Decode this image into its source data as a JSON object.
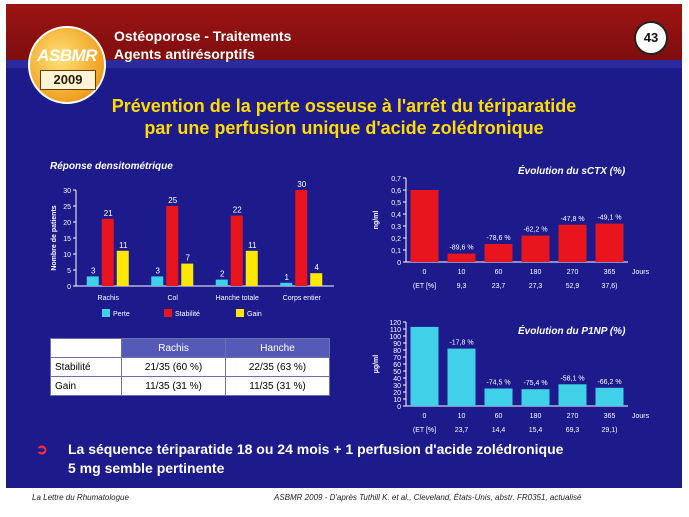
{
  "header": {
    "logo_text": "ASBMR",
    "logo_year": "2009",
    "title_line1": "Ostéoporose - Traitements",
    "title_line2": "Agents antirésorptifs",
    "page_number": "43"
  },
  "main_title": {
    "line1": "Prévention de la perte osseuse à l'arrêt du tériparatide",
    "line2": "par une perfusion unique d'acide zolédronique"
  },
  "colors": {
    "background": "#1d1a8c",
    "header": "#8a1010",
    "title": "#ffdc00",
    "perte": "#40d0e8",
    "stabilite": "#e8141e",
    "gain": "#ffe800"
  },
  "chart_data": [
    {
      "type": "bar",
      "title": "Réponse densitométrique",
      "ylabel": "Nombre de patients",
      "ylim": [
        0,
        30
      ],
      "yticks": [
        0,
        5,
        10,
        15,
        20,
        25,
        30
      ],
      "categories": [
        "Rachis",
        "Col",
        "Hanche totale",
        "Corps entier"
      ],
      "series": [
        {
          "name": "Perte",
          "values": [
            3,
            3,
            2,
            1
          ]
        },
        {
          "name": "Stabilité",
          "values": [
            21,
            25,
            22,
            30
          ]
        },
        {
          "name": "Gain",
          "values": [
            11,
            7,
            11,
            4
          ]
        }
      ],
      "legend": "bottom",
      "grid": false
    },
    {
      "type": "bar",
      "title": "Évolution du sCTX (%)",
      "ylabel": "ng/ml",
      "ylim": [
        0,
        0.7
      ],
      "yticks": [
        "0",
        "0,1",
        "0,2",
        "0,3",
        "0,4",
        "0,5",
        "0,6",
        "0,7"
      ],
      "xlabel": "Jours",
      "categories": [
        "0",
        "10",
        "60",
        "180",
        "270",
        "365"
      ],
      "values": [
        0.6,
        0.07,
        0.15,
        0.22,
        0.31,
        0.32
      ],
      "bar_labels": [
        "",
        "-89,6 %",
        "-78,6 %",
        "-62,2 %",
        "-47,8 %",
        "-49,1 %"
      ],
      "et_label": "(ET [%]",
      "et_values": [
        "9,3",
        "23,7",
        "27,3",
        "52,9",
        "37,6)"
      ],
      "grid": false
    },
    {
      "type": "bar",
      "title": "Évolution du P1NP (%)",
      "ylabel": "µg/ml",
      "ylim": [
        0,
        120
      ],
      "yticks": [
        0,
        10,
        20,
        30,
        40,
        50,
        60,
        70,
        80,
        90,
        100,
        110,
        120
      ],
      "xlabel": "Jours",
      "categories": [
        "0",
        "10",
        "60",
        "180",
        "270",
        "365"
      ],
      "values": [
        113,
        82,
        25,
        24,
        31,
        26
      ],
      "bar_labels": [
        "",
        "-17,8 %",
        "-74,5 %",
        "-75,4 %",
        "-58,1 %",
        "-66,2 %"
      ],
      "et_label": "(ET [%]",
      "et_values": [
        "23,7",
        "14,4",
        "15,4",
        "69,3",
        "29,1)"
      ],
      "grid": false
    }
  ],
  "table": {
    "headers": [
      "",
      "Rachis",
      "Hanche"
    ],
    "rows": [
      [
        "Stabilité",
        "21/35 (60 %)",
        "22/35 (63 %)"
      ],
      [
        "Gain",
        "11/35 (31 %)",
        "11/35 (31 %)"
      ]
    ]
  },
  "conclusion": {
    "line1": "La séquence tériparatide 18 ou 24 mois + 1 perfusion d'acide zolédronique",
    "line2": "5 mg semble pertinente"
  },
  "footer": {
    "left": "La Lettre du Rhumatologue",
    "right": "ASBMR 2009 - D'après Tuthill K. et al., Cleveland, États-Unis, abstr. FR0351, actualisé"
  }
}
